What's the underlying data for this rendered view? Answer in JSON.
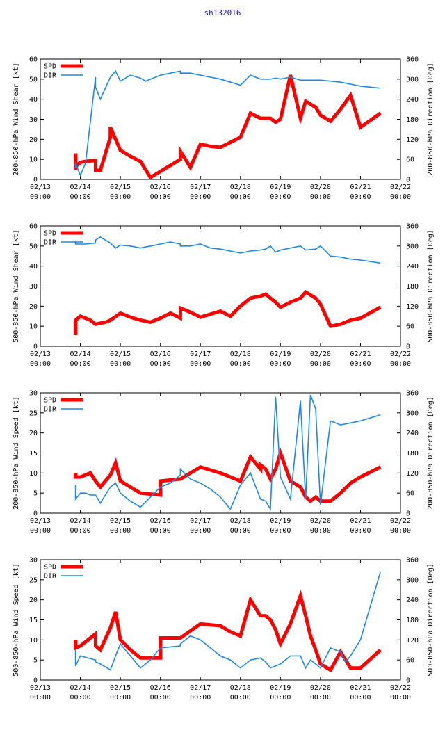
{
  "title": "sh132016",
  "colors": {
    "spd": "#ff0000",
    "dir": "#1e88e5",
    "axis": "#000000"
  },
  "chart_data": [
    {
      "type": "line",
      "ylabel_left": "200-850-hPa Wind Shear [kt]",
      "ylabel_right": "200-850-hPa Direction [Deg]",
      "ylim_left": [
        0,
        60
      ],
      "yticks_left": [
        0,
        10,
        20,
        30,
        40,
        50,
        60
      ],
      "ylim_right": [
        0,
        360
      ],
      "yticks_right": [
        0,
        60,
        120,
        180,
        240,
        300,
        360
      ],
      "xlim": [
        0,
        9
      ],
      "xticks": [
        {
          "date": "02/13",
          "time": "00:00"
        },
        {
          "date": "02/14",
          "time": "00:00"
        },
        {
          "date": "02/15",
          "time": "00:00"
        },
        {
          "date": "02/16",
          "time": "00:00"
        },
        {
          "date": "02/17",
          "time": "00:00"
        },
        {
          "date": "02/18",
          "time": "00:00"
        },
        {
          "date": "02/19",
          "time": "00:00"
        },
        {
          "date": "02/20",
          "time": "00:00"
        },
        {
          "date": "02/21",
          "time": "00:00"
        },
        {
          "date": "02/22",
          "time": "00:00"
        }
      ],
      "legend": [
        "SPD",
        "DIR"
      ],
      "series": [
        {
          "name": "SPD",
          "axis": "left",
          "x": [
            0.88,
            0.88,
            0.91,
            1,
            1.13,
            1.38,
            1.38,
            1.5,
            1.75,
            1.75,
            2,
            2.25,
            2.5,
            2.5,
            2.75,
            3,
            3.5,
            3.5,
            3.75,
            4,
            4.25,
            4.5,
            4.75,
            5,
            5.25,
            5.5,
            5.5,
            5.63,
            5.75,
            5.88,
            6,
            6.25,
            6.5,
            6.5,
            6.63,
            6.88,
            7,
            7.25,
            7.5,
            7.75,
            8,
            8.5
          ],
          "y": [
            13,
            5,
            7,
            8.5,
            9,
            9.5,
            4.5,
            4.5,
            21,
            26,
            14.5,
            11.5,
            9,
            9,
            1,
            4,
            10,
            14,
            6,
            17.5,
            16.5,
            16,
            18.5,
            21,
            33,
            30.5,
            30.5,
            30.5,
            30.5,
            28.5,
            30,
            52,
            30.5,
            30.5,
            39,
            36,
            32,
            29,
            35,
            42,
            26,
            33
          ]
        },
        {
          "name": "DIR",
          "axis": "left",
          "x": [
            0.88,
            0.88,
            0.91,
            1,
            1.13,
            1.38,
            1.38,
            1.5,
            1.75,
            1.88,
            2,
            2.25,
            2.5,
            2.63,
            3,
            3.5,
            3.5,
            3.75,
            4,
            4.25,
            4.5,
            4.75,
            5,
            5.25,
            5.5,
            5.75,
            5.88,
            6,
            6.25,
            6.5,
            6.63,
            6.88,
            7,
            7.25,
            7.5,
            7.75,
            8,
            8.5
          ],
          "y": [
            5.5,
            8.5,
            6.5,
            2,
            8,
            51,
            46,
            40,
            51,
            54,
            49,
            52,
            50.5,
            49,
            52,
            54,
            53,
            53,
            52,
            51,
            50,
            48.5,
            47,
            52,
            50,
            50,
            50.5,
            50,
            51,
            49.5,
            49.5,
            49.5,
            49.5,
            49,
            48.5,
            47.5,
            46.5,
            45.5
          ]
        }
      ]
    },
    {
      "type": "line",
      "ylabel_left": "500-850-hPa Wind Shear [kt]",
      "ylabel_right": "500-850-hPa Direction [Deg]",
      "ylim_left": [
        0,
        60
      ],
      "yticks_left": [
        0,
        10,
        20,
        30,
        40,
        50,
        60
      ],
      "ylim_right": [
        0,
        360
      ],
      "yticks_right": [
        0,
        60,
        120,
        180,
        240,
        300,
        360
      ],
      "xlim": [
        0,
        9
      ],
      "xticks": [
        {
          "date": "02/13",
          "time": "00:00"
        },
        {
          "date": "02/14",
          "time": "00:00"
        },
        {
          "date": "02/15",
          "time": "00:00"
        },
        {
          "date": "02/16",
          "time": "00:00"
        },
        {
          "date": "02/17",
          "time": "00:00"
        },
        {
          "date": "02/18",
          "time": "00:00"
        },
        {
          "date": "02/19",
          "time": "00:00"
        },
        {
          "date": "02/20",
          "time": "00:00"
        },
        {
          "date": "02/21",
          "time": "00:00"
        },
        {
          "date": "02/22",
          "time": "00:00"
        }
      ],
      "legend": [
        "SPD",
        "DIR"
      ],
      "series": [
        {
          "name": "SPD",
          "axis": "left",
          "x": [
            0.88,
            0.88,
            1,
            1.13,
            1.25,
            1.38,
            1.5,
            1.63,
            1.75,
            2,
            2.25,
            2.5,
            2.75,
            3,
            3.25,
            3.5,
            3.5,
            3.75,
            4,
            4.25,
            4.5,
            4.75,
            5,
            5.25,
            5.5,
            5.63,
            5.75,
            5.88,
            6,
            6.25,
            6.5,
            6.63,
            6.88,
            7,
            7.25,
            7.5,
            7.75,
            8,
            8.5
          ],
          "y": [
            5.5,
            13,
            15,
            14,
            13,
            11,
            11.5,
            12,
            13,
            16.5,
            14.5,
            13,
            12,
            14,
            16.5,
            14,
            19,
            17,
            14.5,
            16,
            17.5,
            15,
            20,
            24,
            25,
            26,
            24,
            22,
            19.5,
            22,
            24,
            27,
            24,
            21,
            10,
            11,
            13,
            14,
            19.5
          ]
        },
        {
          "name": "DIR",
          "axis": "left",
          "x": [
            0.88,
            0.88,
            0.91,
            1,
            1.13,
            1.38,
            1.38,
            1.5,
            1.75,
            1.88,
            2,
            2.25,
            2.5,
            2.75,
            3,
            3.25,
            3.5,
            3.5,
            3.75,
            4,
            4.25,
            4.5,
            4.75,
            5,
            5.25,
            5.5,
            5.63,
            5.75,
            5.88,
            6,
            6.25,
            6.5,
            6.63,
            6.88,
            7,
            7.25,
            7.5,
            7.75,
            8,
            8.5
          ],
          "y": [
            52.5,
            51,
            51,
            51,
            51,
            51.5,
            53,
            54.5,
            51.5,
            49,
            50.5,
            50,
            49,
            50,
            51,
            52,
            51,
            50,
            50,
            51,
            49,
            48.5,
            47.5,
            46.5,
            47.5,
            48,
            48.5,
            50,
            47,
            48,
            49,
            50,
            48,
            48.5,
            50,
            45,
            44.5,
            43.5,
            43,
            41.5
          ]
        }
      ]
    },
    {
      "type": "line",
      "ylabel_left": "200-850-hPa Wind Speed [kt]",
      "ylabel_right": "200-850-hPa Direction [Deg]",
      "ylim_left": [
        0,
        30
      ],
      "yticks_left": [
        0,
        5,
        10,
        15,
        20,
        25,
        30
      ],
      "ylim_right": [
        0,
        360
      ],
      "yticks_right": [
        0,
        60,
        120,
        180,
        240,
        300,
        360
      ],
      "xlim": [
        0,
        9
      ],
      "xticks": [
        {
          "date": "02/13",
          "time": "00:00"
        },
        {
          "date": "02/14",
          "time": "00:00"
        },
        {
          "date": "02/15",
          "time": "00:00"
        },
        {
          "date": "02/16",
          "time": "00:00"
        },
        {
          "date": "02/17",
          "time": "00:00"
        },
        {
          "date": "02/18",
          "time": "00:00"
        },
        {
          "date": "02/19",
          "time": "00:00"
        },
        {
          "date": "02/20",
          "time": "00:00"
        },
        {
          "date": "02/21",
          "time": "00:00"
        },
        {
          "date": "02/22",
          "time": "00:00"
        }
      ],
      "legend": [
        "SPD",
        "DIR"
      ],
      "series": [
        {
          "name": "SPD",
          "axis": "left",
          "x": [
            0.88,
            0.88,
            1,
            1.25,
            1.38,
            1.5,
            1.75,
            1.88,
            2,
            2.25,
            2.5,
            3,
            3,
            3.5,
            4,
            4.5,
            4.75,
            5,
            5.25,
            5.5,
            5.5,
            5.63,
            5.75,
            5.88,
            6,
            6.25,
            6.5,
            6.63,
            6.75,
            6.88,
            7,
            7.25,
            7.5,
            7.75,
            8,
            8.5
          ],
          "y": [
            10,
            9,
            9,
            10,
            8,
            6.5,
            9.5,
            12.5,
            8,
            6.5,
            5,
            4.5,
            8,
            8.5,
            11.5,
            10,
            9,
            8,
            14,
            11,
            12,
            11,
            8.5,
            11,
            15,
            8,
            6.5,
            4,
            3,
            4,
            3,
            3,
            5,
            7.5,
            9,
            11.5
          ]
        },
        {
          "name": "DIR",
          "axis": "left",
          "x": [
            0.88,
            0.88,
            1,
            1.13,
            1.25,
            1.38,
            1.5,
            1.75,
            1.88,
            2,
            2.25,
            2.5,
            2.75,
            3,
            3.25,
            3.5,
            3.5,
            3.75,
            4,
            4.25,
            4.5,
            4.75,
            5,
            5.25,
            5.5,
            5.5,
            5.63,
            5.75,
            5.88,
            6,
            6.25,
            6.5,
            6.63,
            6.75,
            6.88,
            7,
            7.25,
            7.5,
            7.75,
            8,
            8.5
          ],
          "y": [
            7,
            3.5,
            5,
            5,
            4.5,
            4.5,
            2.5,
            6.5,
            7.5,
            5,
            3,
            1.5,
            4,
            6.5,
            7.5,
            9.5,
            11,
            8.5,
            7.5,
            6,
            4,
            1,
            7,
            10,
            3.5,
            3.5,
            3,
            1,
            29,
            9,
            3.5,
            28,
            3.5,
            29.5,
            26,
            2,
            23,
            22,
            22.5,
            23,
            24.5
          ]
        }
      ]
    },
    {
      "type": "line",
      "ylabel_left": "500-850-hPa Wind Speed [kt]",
      "ylabel_right": "500-850-hPa Direction [Deg]",
      "ylim_left": [
        0,
        30
      ],
      "yticks_left": [
        0,
        5,
        10,
        15,
        20,
        25,
        30
      ],
      "ylim_right": [
        0,
        360
      ],
      "yticks_right": [
        0,
        60,
        120,
        180,
        240,
        300,
        360
      ],
      "xlim": [
        0,
        9
      ],
      "xticks": [
        {
          "date": "02/13",
          "time": "00:00"
        },
        {
          "date": "02/14",
          "time": "00:00"
        },
        {
          "date": "02/15",
          "time": "00:00"
        },
        {
          "date": "02/16",
          "time": "00:00"
        },
        {
          "date": "02/17",
          "time": "00:00"
        },
        {
          "date": "02/18",
          "time": "00:00"
        },
        {
          "date": "02/19",
          "time": "00:00"
        },
        {
          "date": "02/20",
          "time": "00:00"
        },
        {
          "date": "02/21",
          "time": "00:00"
        },
        {
          "date": "02/22",
          "time": "00:00"
        }
      ],
      "legend": [
        "SPD",
        "DIR"
      ],
      "series": [
        {
          "name": "SPD",
          "axis": "left",
          "x": [
            0.88,
            0.88,
            1,
            1.38,
            1.38,
            1.5,
            1.75,
            1.88,
            2,
            2.25,
            2.5,
            3,
            3,
            3.5,
            4,
            4.5,
            4.75,
            5,
            5.25,
            5.5,
            5.5,
            5.63,
            5.75,
            5.88,
            6,
            6.25,
            6.5,
            6.63,
            6.75,
            6.88,
            7,
            7.25,
            7.5,
            7.75,
            8,
            8.5
          ],
          "y": [
            10,
            8,
            8.5,
            11.5,
            8.5,
            7.5,
            13,
            17,
            10,
            7.5,
            5.5,
            5.5,
            10.5,
            10.5,
            14,
            13.5,
            12,
            11,
            20,
            16,
            16,
            16,
            15,
            12.5,
            9,
            14,
            21,
            16,
            11,
            7.5,
            4,
            2.5,
            7,
            3,
            3,
            7.5
          ]
        },
        {
          "name": "DIR",
          "axis": "left",
          "x": [
            0.88,
            0.88,
            1,
            1.38,
            1.38,
            1.5,
            1.75,
            1.88,
            2,
            2.25,
            2.5,
            2.75,
            3,
            3.5,
            3.5,
            3.75,
            4,
            4.5,
            4.75,
            5,
            5.25,
            5.5,
            5.63,
            5.75,
            5.88,
            6,
            6.25,
            6.5,
            6.63,
            6.75,
            6.88,
            7,
            7.25,
            7.5,
            7.63,
            7.75,
            8,
            8.5
          ],
          "y": [
            7.5,
            3.5,
            6,
            5,
            4.5,
            4,
            2.5,
            6,
            9,
            6,
            3,
            5,
            8,
            8.5,
            9,
            11,
            10,
            6,
            5,
            3,
            5,
            5.5,
            4.5,
            3,
            3.5,
            4,
            6,
            6,
            3,
            5,
            4,
            3,
            8,
            7,
            4.5,
            6,
            10,
            27
          ]
        }
      ]
    }
  ]
}
